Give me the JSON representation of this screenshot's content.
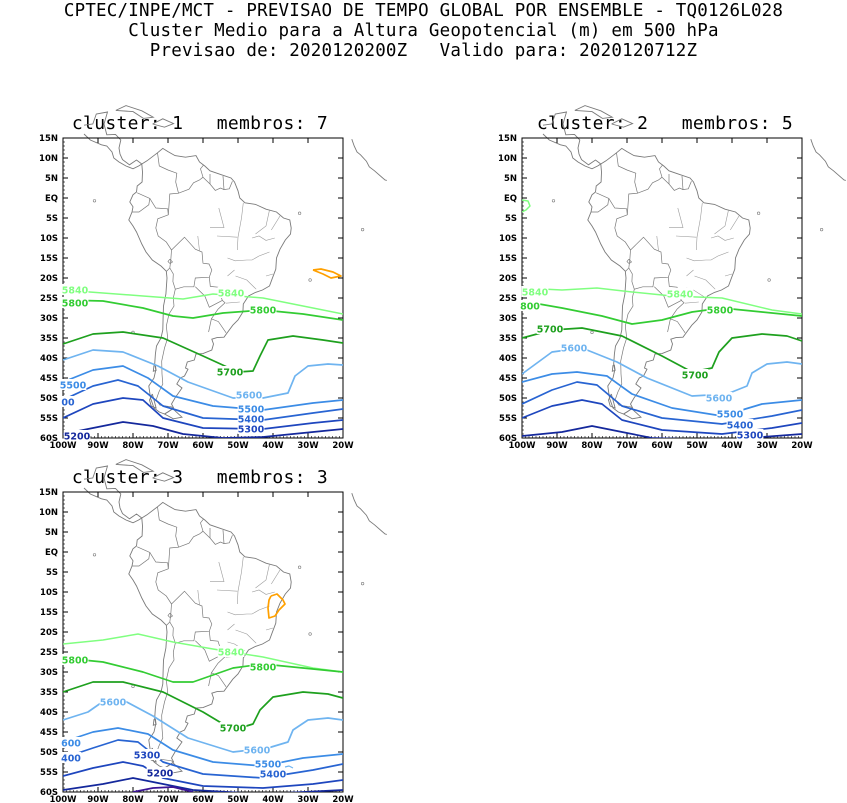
{
  "header": {
    "line1": "CPTEC/INPE/MCT - PREVISAO DE TEMPO GLOBAL POR ENSEMBLE - TQ0126L028",
    "line2": "Cluster Medio para a Altura Geopotencial (m) em 500 hPa",
    "line3": "Previsao de: 2020120200Z   Valido para: 2020120712Z"
  },
  "axes": {
    "lat_labels": [
      "15N",
      "10N",
      "5N",
      "EQ",
      "5S",
      "10S",
      "15S",
      "20S",
      "25S",
      "30S",
      "35S",
      "40S",
      "45S",
      "50S",
      "55S",
      "60S"
    ],
    "lon_labels": [
      "100W",
      "90W",
      "80W",
      "70W",
      "60W",
      "50W",
      "40W",
      "30W",
      "20W"
    ]
  },
  "colors": {
    "c5840": "#80ff80",
    "c5800": "#33cc33",
    "c5700": "#1ea01e",
    "c5600": "#6fb4f0",
    "c5500": "#3c8ce6",
    "c5400": "#2864d2",
    "c5300": "#1e46be",
    "c5200": "#14289c",
    "c5100": "#3c1496",
    "high": "#ffa000",
    "coast": "#808080"
  },
  "panels": [
    {
      "title": "cluster: 1   membros: 7",
      "label_5840": "5840",
      "label_5840b": "5840",
      "label_5800": "5800",
      "label_5800b": "5800",
      "label_5700": "5700",
      "label_5600": "5600",
      "label_5500": "5500",
      "label_5500b": "5500",
      "label_5400": "5400",
      "label_5300": "5300",
      "label_00": "00",
      "label_5200": "5200"
    },
    {
      "title": "cluster: 2   membros: 5",
      "label_5840": "5840",
      "label_5840b": "5840",
      "label_5800": "800",
      "label_5800b": "5800",
      "label_5700": "5700",
      "label_5700b": "5700",
      "label_5600": "5600",
      "label_5600b": "5600",
      "label_5500": "5500",
      "label_5400": "5400",
      "label_5300": "5300"
    },
    {
      "title": "cluster: 3   membros: 3",
      "label_5840": "5840",
      "label_5800": "5800",
      "label_5800b": "5800",
      "label_5700": "5700",
      "label_5600": "5600",
      "label_5600b": "5600",
      "label_5600c": "600",
      "label_5500": "5500",
      "label_5400": "5400",
      "label_5400b": "400",
      "label_5300": "5300",
      "label_5200": "5200"
    }
  ]
}
